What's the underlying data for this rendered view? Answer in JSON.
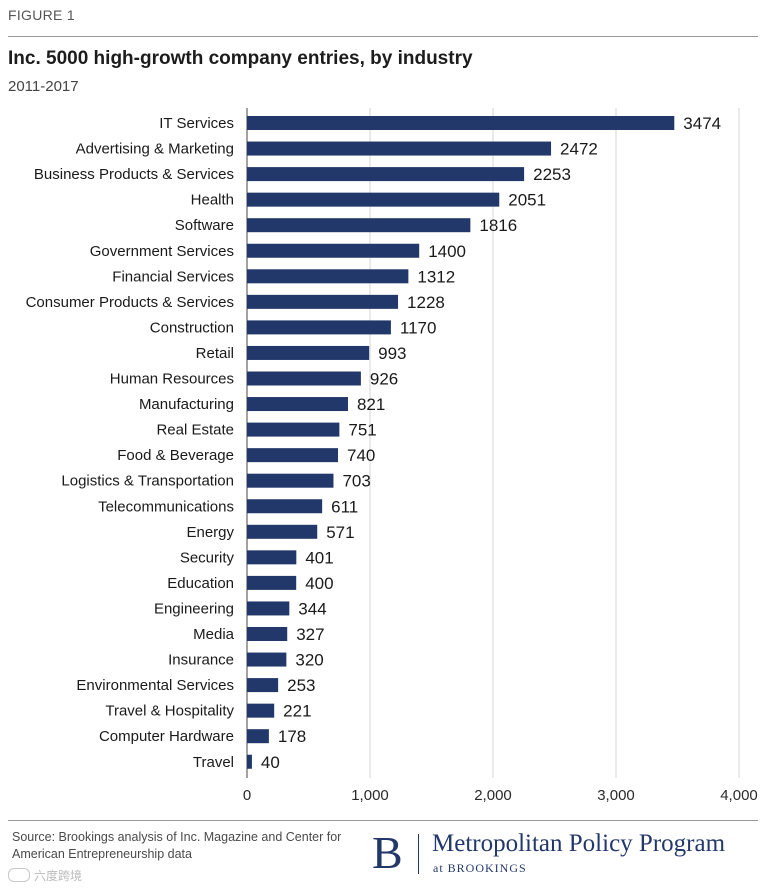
{
  "figure_label": "FIGURE 1",
  "source_text": "Source: Brookings analysis of Inc. Magazine and Center for American Entrepreneurship data",
  "logo": {
    "letter": "B",
    "name": "Metropolitan Policy Program",
    "sub": "at BROOKINGS"
  },
  "watermark": "六度跨境",
  "colors": {
    "bar": "#23386a",
    "grid": "#d4d4d4",
    "text": "#1a1a1a"
  },
  "chart_data": {
    "type": "bar",
    "orientation": "horizontal",
    "title": "Inc. 5000 high-growth company entries, by industry",
    "subtitle": "2011-2017",
    "xlabel": "",
    "ylabel": "",
    "xlim": [
      0,
      4000
    ],
    "xticks": [
      0,
      1000,
      2000,
      3000,
      4000
    ],
    "xtick_labels": [
      "0",
      "1,000",
      "2,000",
      "3,000",
      "4,000"
    ],
    "grid": true,
    "categories": [
      "IT Services",
      "Advertising & Marketing",
      "Business Products & Services",
      "Health",
      "Software",
      "Government Services",
      "Financial Services",
      "Consumer Products & Services",
      "Construction",
      "Retail",
      "Human Resources",
      "Manufacturing",
      "Real Estate",
      "Food & Beverage",
      "Logistics & Transportation",
      "Telecommunications",
      "Energy",
      "Security",
      "Education",
      "Engineering",
      "Media",
      "Insurance",
      "Environmental Services",
      "Travel & Hospitality",
      "Computer Hardware",
      "Travel"
    ],
    "values": [
      3474,
      2472,
      2253,
      2051,
      1816,
      1400,
      1312,
      1228,
      1170,
      993,
      926,
      821,
      751,
      740,
      703,
      611,
      571,
      401,
      400,
      344,
      327,
      320,
      253,
      221,
      178,
      40
    ],
    "value_labels": [
      "3474",
      "2472",
      "2253",
      "2051",
      "1816",
      "1400",
      "1312",
      "1228",
      "1170",
      "993",
      "926",
      "821",
      "751",
      "740",
      "703",
      "611",
      "571",
      "401",
      "400",
      "344",
      "327",
      "320",
      "253",
      "221",
      "178",
      "40"
    ]
  }
}
